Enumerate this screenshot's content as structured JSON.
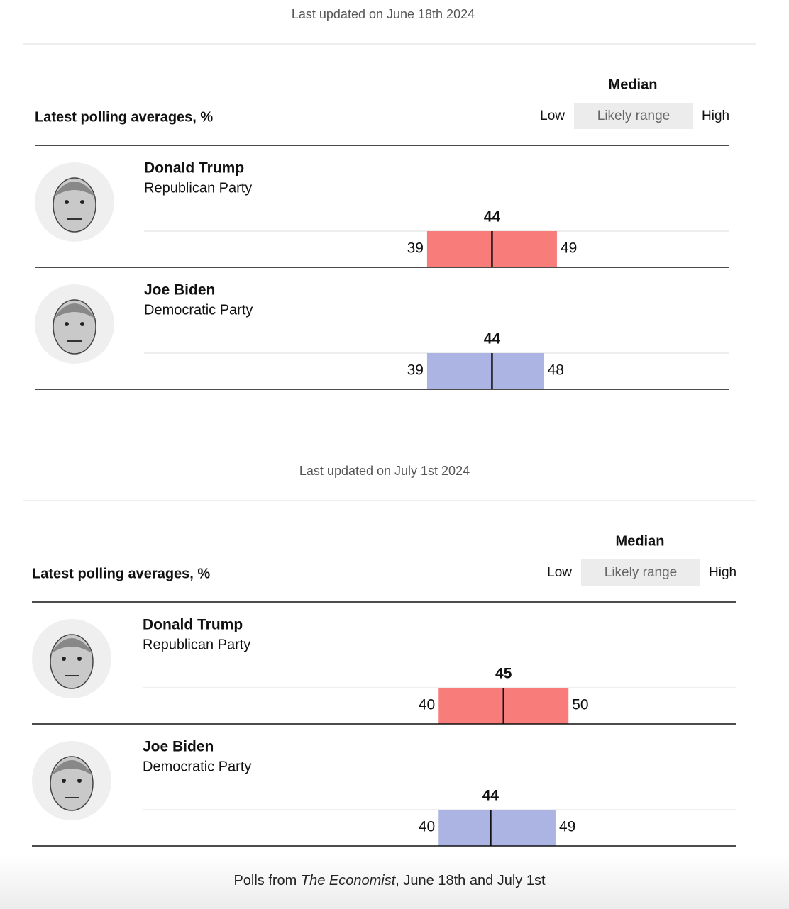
{
  "chart_data": [
    {
      "type": "range",
      "updated": "Last updated on June 18th 2024",
      "title": "Latest polling averages, %",
      "legend": {
        "median": "Median",
        "low": "Low",
        "range": "Likely range",
        "high": "High"
      },
      "series": [
        {
          "name": "Donald Trump",
          "party": "Republican Party",
          "color": "#f87c7a",
          "low": 39,
          "median": 44,
          "high": 49
        },
        {
          "name": "Joe Biden",
          "party": "Democratic Party",
          "color": "#abb4e2",
          "low": 39,
          "median": 44,
          "high": 48
        }
      ]
    },
    {
      "type": "range",
      "updated": "Last updated on July 1st 2024",
      "title": "Latest polling averages, %",
      "legend": {
        "median": "Median",
        "low": "Low",
        "range": "Likely range",
        "high": "High"
      },
      "series": [
        {
          "name": "Donald Trump",
          "party": "Republican Party",
          "color": "#f87c7a",
          "low": 40,
          "median": 45,
          "high": 50
        },
        {
          "name": "Joe Biden",
          "party": "Democratic Party",
          "color": "#abb4e2",
          "low": 40,
          "median": 44,
          "high": 49
        }
      ]
    }
  ],
  "caption": {
    "lead": "Polls from ",
    "source": "The Economist",
    "tail": ", June 18th and July 1st"
  }
}
